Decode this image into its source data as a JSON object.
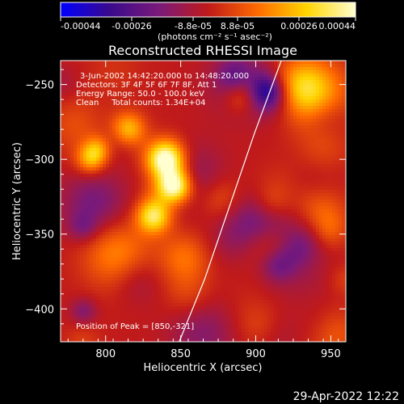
{
  "colorbar": {
    "ticks": [
      "-0.00044",
      "-0.00026",
      "-8.8e-05",
      "8.8e-05",
      "0.00026",
      "0.00044"
    ],
    "units": "(photons cm⁻² s⁻¹ asec⁻²)",
    "colors": [
      "#0000ff",
      "#3a0a8c",
      "#7a1a7a",
      "#c01a1a",
      "#ff6a00",
      "#ffd400",
      "#ffffd0"
    ]
  },
  "chart_data": {
    "type": "heatmap",
    "title": "Reconstructed RHESSI Image",
    "xlabel": "Heliocentric X (arcsec)",
    "ylabel": "Heliocentric Y (arcsec)",
    "xlim": [
      770,
      960
    ],
    "ylim": [
      -422,
      -234
    ],
    "xticks": [
      800,
      850,
      900,
      950
    ],
    "yticks": [
      -250,
      -300,
      -350,
      -400
    ],
    "xtick_labels": [
      "800",
      "850",
      "900",
      "950"
    ],
    "ytick_labels": [
      "−250",
      "−300",
      "−350",
      "−400"
    ],
    "vmin": -0.00044,
    "vmax": 0.00044,
    "limb_points": [
      [
        849,
        -422
      ],
      [
        866,
        -380
      ],
      [
        883,
        -330
      ],
      [
        899,
        -283
      ],
      [
        917,
        -234
      ]
    ],
    "peak": {
      "x": 850,
      "y": -321
    },
    "annotations": [
      "3-Jun-2002 14:42:20.000 to 14:48:20.000",
      "Detectors: 3F 4F 5F 6F 7F 8F, Att 1",
      "Energy Range: 50.0 - 100.0 keV",
      "Clean     Total counts: 1.34E+04"
    ],
    "peak_label": "Position of Peak = [850,-321]"
  },
  "footer": {
    "timestamp": "29-Apr-2022 12:22"
  }
}
